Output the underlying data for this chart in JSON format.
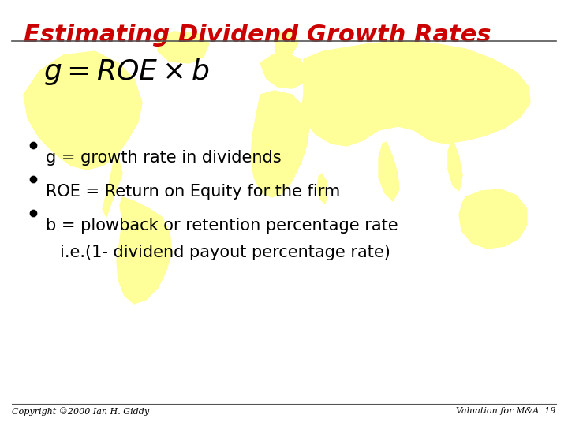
{
  "title": "Estimating Dividend Growth Rates",
  "title_color": "#CC0000",
  "title_fontsize": 22,
  "background_color": "#FFFFFF",
  "bullet_points": [
    "g = growth rate in dividends",
    "ROE = Return on Equity for the firm",
    "b = plowback or retention percentage rate",
    "i.e.(1- dividend payout percentage rate)"
  ],
  "bullet_fontsize": 15,
  "formula_fontsize": 26,
  "footer_left": "Copyright ©2000 Ian H. Giddy",
  "footer_right": "Valuation for M&A  19",
  "footer_fontsize": 8,
  "line_color": "#555555",
  "world_map_color": "#FFFF99",
  "bullet_color": "#000000"
}
